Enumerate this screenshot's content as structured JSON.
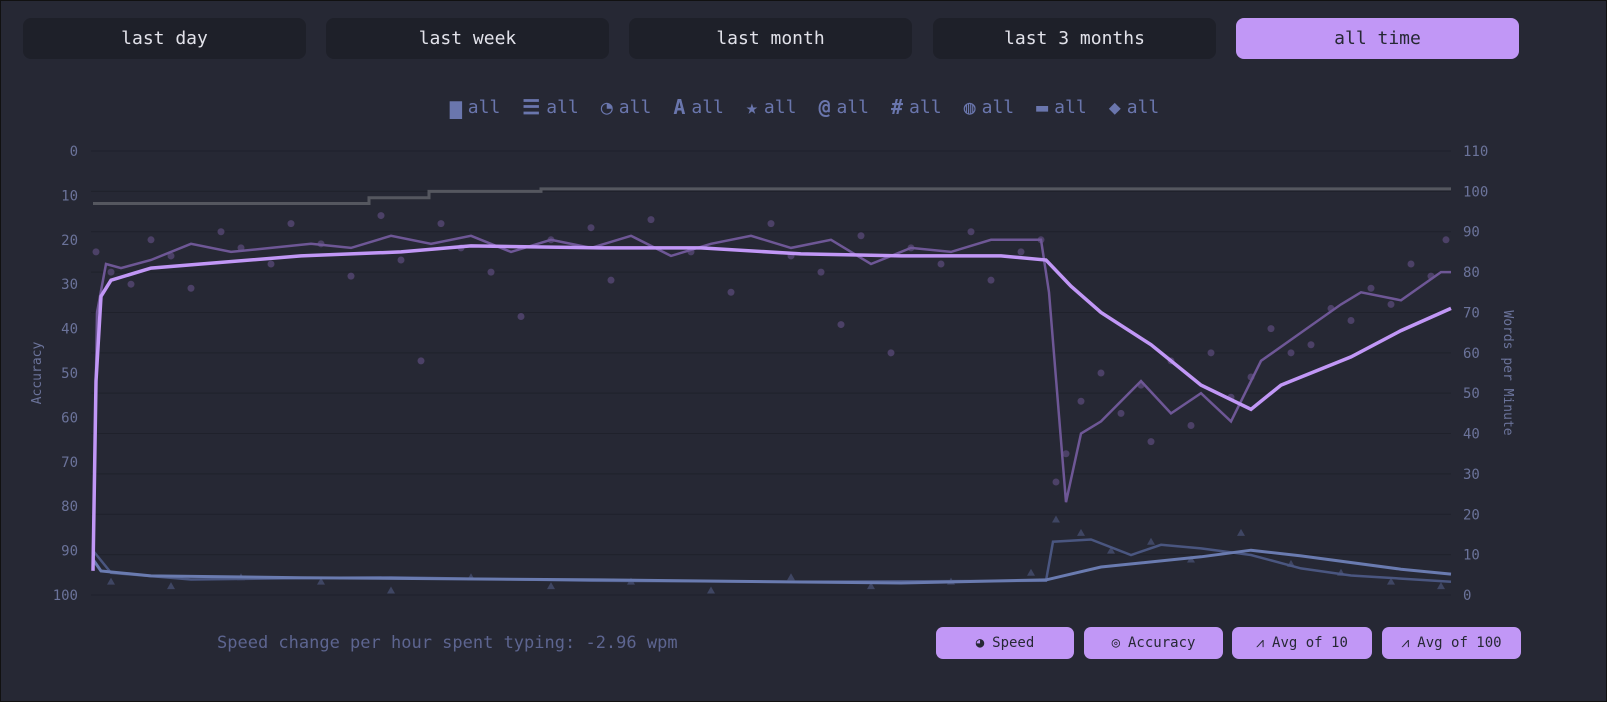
{
  "ranges": [
    "last day",
    "last week",
    "last month",
    "last 3 months",
    "all time"
  ],
  "active_range": "all time",
  "filters": [
    {
      "icon": "calendar-icon",
      "glyph": "▆",
      "label": "all"
    },
    {
      "icon": "list-icon",
      "glyph": "☰",
      "label": "all"
    },
    {
      "icon": "clock-icon",
      "glyph": "◔",
      "label": "all"
    },
    {
      "icon": "font-icon",
      "glyph": "A",
      "label": "all"
    },
    {
      "icon": "star-icon",
      "glyph": "★",
      "label": "all"
    },
    {
      "icon": "at-icon",
      "glyph": "@",
      "label": "all"
    },
    {
      "icon": "hashtag-icon",
      "glyph": "#",
      "label": "all"
    },
    {
      "icon": "globe-icon",
      "glyph": "◍",
      "label": "all"
    },
    {
      "icon": "gamepad-icon",
      "glyph": "▬",
      "label": "all"
    },
    {
      "icon": "tags-icon",
      "glyph": "◆",
      "label": "all"
    }
  ],
  "colors": {
    "accent": "#c197f6",
    "sub": "#6a76ad",
    "pb": "#55575f",
    "acc": "#6a7bb0",
    "bg": "#262834"
  },
  "chart_data": {
    "type": "line",
    "ylabel_left": "Accuracy",
    "ylabel_right": "Words per Minute",
    "left_axis": {
      "range": [
        0,
        100
      ],
      "reversed": true,
      "ticks": [
        "0",
        "10",
        "20",
        "30",
        "40",
        "50",
        "60",
        "70",
        "80",
        "90",
        "100"
      ]
    },
    "right_axis": {
      "range": [
        0,
        110
      ],
      "ticks": [
        "0",
        "10",
        "20",
        "30",
        "40",
        "50",
        "60",
        "70",
        "80",
        "90",
        "100",
        "110"
      ]
    },
    "x_range": [
      0,
      1360
    ],
    "grid": true,
    "series": {
      "wpm_avg100": [
        [
          2,
          6
        ],
        [
          5,
          53
        ],
        [
          10,
          74
        ],
        [
          20,
          78
        ],
        [
          60,
          81
        ],
        [
          110,
          82
        ],
        [
          210,
          84
        ],
        [
          310,
          85
        ],
        [
          380,
          86.5
        ],
        [
          510,
          86
        ],
        [
          610,
          86
        ],
        [
          710,
          84.5
        ],
        [
          810,
          84
        ],
        [
          910,
          84
        ],
        [
          955,
          83
        ],
        [
          980,
          76.5
        ],
        [
          1010,
          70
        ],
        [
          1060,
          62
        ],
        [
          1110,
          52
        ],
        [
          1160,
          46
        ],
        [
          1190,
          52
        ],
        [
          1260,
          59
        ],
        [
          1310,
          65.5
        ],
        [
          1360,
          71
        ]
      ],
      "wpm_avg10": [
        [
          2,
          10
        ],
        [
          6,
          70
        ],
        [
          15,
          82
        ],
        [
          30,
          81
        ],
        [
          60,
          83
        ],
        [
          100,
          87
        ],
        [
          140,
          85
        ],
        [
          180,
          86
        ],
        [
          220,
          87
        ],
        [
          260,
          86
        ],
        [
          300,
          89
        ],
        [
          340,
          87
        ],
        [
          380,
          89
        ],
        [
          420,
          85
        ],
        [
          460,
          88
        ],
        [
          500,
          86
        ],
        [
          540,
          89
        ],
        [
          580,
          84
        ],
        [
          620,
          87
        ],
        [
          660,
          89
        ],
        [
          700,
          86
        ],
        [
          740,
          88
        ],
        [
          780,
          82
        ],
        [
          820,
          86
        ],
        [
          860,
          85
        ],
        [
          900,
          88
        ],
        [
          950,
          88
        ],
        [
          958,
          75
        ],
        [
          975,
          23
        ],
        [
          990,
          40
        ],
        [
          1010,
          43
        ],
        [
          1050,
          53
        ],
        [
          1080,
          45
        ],
        [
          1110,
          50
        ],
        [
          1140,
          43
        ],
        [
          1170,
          58
        ],
        [
          1210,
          65
        ],
        [
          1250,
          72
        ],
        [
          1270,
          75
        ],
        [
          1310,
          73
        ],
        [
          1350,
          80
        ],
        [
          1360,
          80
        ]
      ],
      "wpm_pb": [
        [
          2,
          97
        ],
        [
          278,
          97
        ],
        [
          278,
          98.4
        ],
        [
          338,
          98.4
        ],
        [
          338,
          100
        ],
        [
          450,
          100
        ],
        [
          450,
          100.6
        ],
        [
          1360,
          100.6
        ]
      ],
      "wpm_points": [
        [
          5,
          85
        ],
        [
          20,
          80
        ],
        [
          40,
          77
        ],
        [
          60,
          88
        ],
        [
          80,
          84
        ],
        [
          100,
          76
        ],
        [
          130,
          90
        ],
        [
          150,
          86
        ],
        [
          180,
          82
        ],
        [
          200,
          92
        ],
        [
          230,
          87
        ],
        [
          260,
          79
        ],
        [
          290,
          94
        ],
        [
          310,
          83
        ],
        [
          330,
          58
        ],
        [
          350,
          92
        ],
        [
          370,
          86
        ],
        [
          400,
          80
        ],
        [
          430,
          69
        ],
        [
          460,
          88
        ],
        [
          500,
          91
        ],
        [
          520,
          78
        ],
        [
          560,
          93
        ],
        [
          600,
          85
        ],
        [
          640,
          75
        ],
        [
          680,
          92
        ],
        [
          700,
          84
        ],
        [
          730,
          80
        ],
        [
          750,
          67
        ],
        [
          770,
          89
        ],
        [
          800,
          60
        ],
        [
          820,
          86
        ],
        [
          850,
          82
        ],
        [
          880,
          90
        ],
        [
          900,
          78
        ],
        [
          930,
          85
        ],
        [
          950,
          88
        ],
        [
          965,
          28
        ],
        [
          975,
          35
        ],
        [
          990,
          48
        ],
        [
          1010,
          55
        ],
        [
          1030,
          45
        ],
        [
          1050,
          52
        ],
        [
          1060,
          38
        ],
        [
          1080,
          58
        ],
        [
          1100,
          42
        ],
        [
          1120,
          60
        ],
        [
          1140,
          49
        ],
        [
          1160,
          54
        ],
        [
          1180,
          66
        ],
        [
          1200,
          60
        ],
        [
          1220,
          62
        ],
        [
          1240,
          71
        ],
        [
          1260,
          68
        ],
        [
          1280,
          76
        ],
        [
          1300,
          72
        ],
        [
          1320,
          82
        ],
        [
          1340,
          79
        ],
        [
          1355,
          88
        ]
      ],
      "acc_avg100": [
        [
          2,
          92
        ],
        [
          10,
          94.6
        ],
        [
          60,
          95.7
        ],
        [
          210,
          96.1
        ],
        [
          510,
          96.6
        ],
        [
          810,
          97.3
        ],
        [
          955,
          96.6
        ],
        [
          1010,
          93.7
        ],
        [
          1110,
          91.4
        ],
        [
          1160,
          89.9
        ],
        [
          1210,
          91.2
        ],
        [
          1310,
          94.2
        ],
        [
          1360,
          95.3
        ]
      ],
      "acc_avg10": [
        [
          2,
          90
        ],
        [
          20,
          95
        ],
        [
          100,
          96.5
        ],
        [
          300,
          96
        ],
        [
          500,
          96.8
        ],
        [
          700,
          97
        ],
        [
          955,
          96.8
        ],
        [
          962,
          88
        ],
        [
          1000,
          87.5
        ],
        [
          1040,
          91
        ],
        [
          1070,
          88.7
        ],
        [
          1110,
          89.5
        ],
        [
          1160,
          91
        ],
        [
          1210,
          94
        ],
        [
          1260,
          95.6
        ],
        [
          1360,
          97
        ]
      ],
      "acc_points": [
        [
          20,
          97
        ],
        [
          80,
          98
        ],
        [
          150,
          96
        ],
        [
          230,
          97
        ],
        [
          300,
          99
        ],
        [
          380,
          96
        ],
        [
          460,
          98
        ],
        [
          540,
          97
        ],
        [
          620,
          99
        ],
        [
          700,
          96
        ],
        [
          780,
          98
        ],
        [
          860,
          97
        ],
        [
          940,
          95
        ],
        [
          965,
          83
        ],
        [
          990,
          86
        ],
        [
          1020,
          90
        ],
        [
          1060,
          88
        ],
        [
          1100,
          92
        ],
        [
          1150,
          86
        ],
        [
          1200,
          93
        ],
        [
          1250,
          95
        ],
        [
          1300,
          97
        ],
        [
          1350,
          98
        ]
      ]
    }
  },
  "note": "Speed change per hour spent typing: -2.96 wpm",
  "toggles": [
    {
      "icon": "gauge-icon",
      "glyph": "◕",
      "label": "Speed"
    },
    {
      "icon": "bullseye-icon",
      "glyph": "◎",
      "label": "Accuracy"
    },
    {
      "icon": "chart-line-icon",
      "glyph": "⩘",
      "label": "Avg of 10"
    },
    {
      "icon": "chart-line-icon",
      "glyph": "⩘",
      "label": "Avg of 100"
    }
  ]
}
